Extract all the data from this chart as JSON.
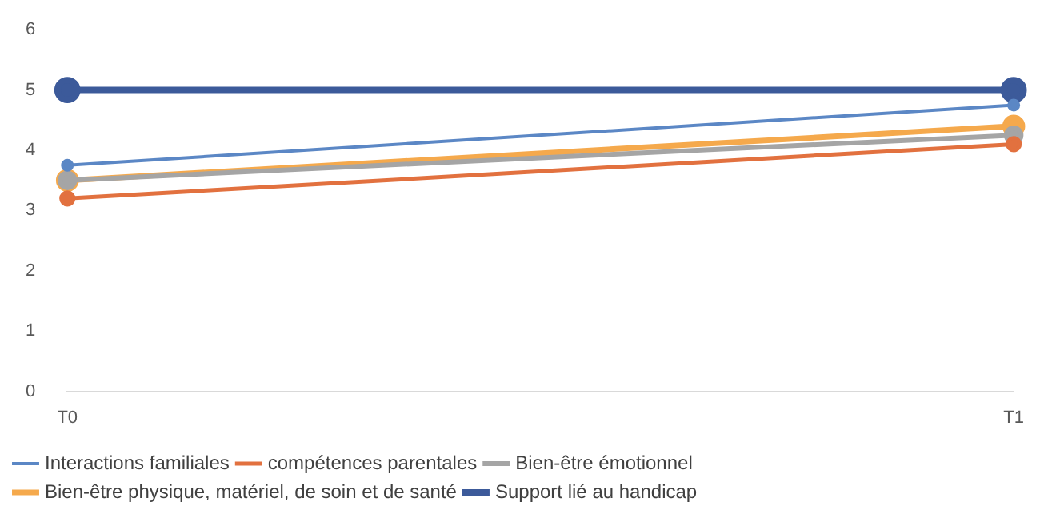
{
  "chart_data": {
    "type": "line",
    "categories": [
      "T0",
      "T1"
    ],
    "ylim": [
      0,
      6
    ],
    "yticks": [
      0,
      1,
      2,
      3,
      4,
      5,
      6
    ],
    "grid": false,
    "legend": "bottom",
    "marker": "circle",
    "line_style": "solid",
    "series": [
      {
        "name": "Interactions familiales",
        "color": "#5b87c5",
        "values": [
          3.75,
          4.75
        ]
      },
      {
        "name": "compétences parentales",
        "color": "#e2713f",
        "values": [
          3.2,
          4.1
        ]
      },
      {
        "name": "Bien-être émotionnel",
        "color": "#a5a5a5",
        "values": [
          3.5,
          4.25
        ]
      },
      {
        "name": "Bien-être physique, matériel, de soin et de santé",
        "color": "#f5a94c",
        "values": [
          3.5,
          4.4
        ]
      },
      {
        "name": "Support lié au handicap",
        "color": "#3c5a9a",
        "values": [
          5,
          5
        ]
      }
    ]
  }
}
